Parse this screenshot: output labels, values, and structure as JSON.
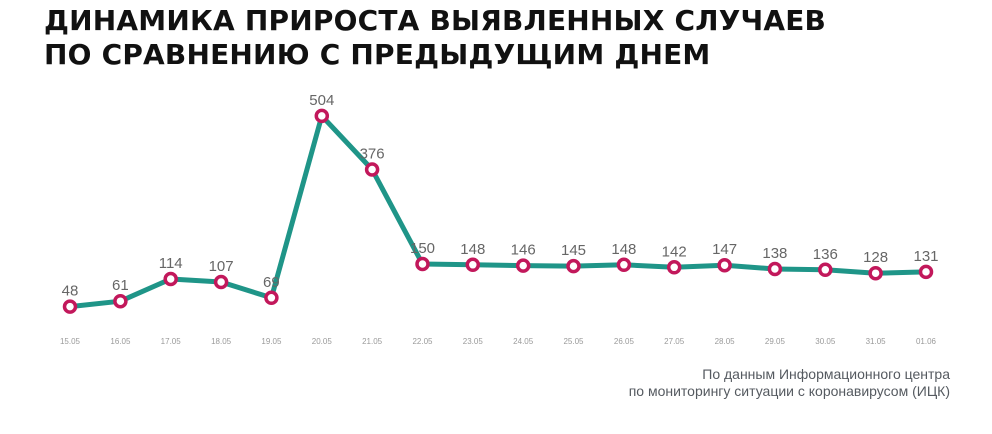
{
  "title": {
    "line1": "ДИНАМИКА ПРИРОСТА ВЫЯВЛЕННЫХ СЛУЧАЕВ",
    "line2": "ПО СРАВНЕНИЮ С ПРЕДЫДУЩИМ ДНЕМ"
  },
  "source": {
    "line1": "По данным Информационного центра",
    "line2": "по мониторингу ситуации с коронавирусом (ИЦК)"
  },
  "colors": {
    "line": "#1f9588",
    "marker_stroke": "#c2185b",
    "marker_fill": "#ffffff",
    "label_text": "#666666",
    "tick_text": "#9a9a9a"
  },
  "chart_data": {
    "type": "line",
    "categories": [
      "15.05",
      "16.05",
      "17.05",
      "18.05",
      "19.05",
      "20.05",
      "21.05",
      "22.05",
      "23.05",
      "24.05",
      "25.05",
      "26.05",
      "27.05",
      "28.05",
      "29.05",
      "30.05",
      "31.05",
      "01.06"
    ],
    "values": [
      48,
      61,
      114,
      107,
      69,
      504,
      376,
      150,
      148,
      146,
      145,
      148,
      142,
      147,
      138,
      136,
      128,
      131
    ],
    "data_labels": [
      "48",
      "61",
      "114",
      "107",
      "69",
      "504",
      "376",
      "150",
      "148",
      "146",
      "145",
      "148",
      "142",
      "147",
      "138",
      "136",
      "128",
      "131"
    ],
    "grid": false,
    "y_axis_shown": false
  }
}
